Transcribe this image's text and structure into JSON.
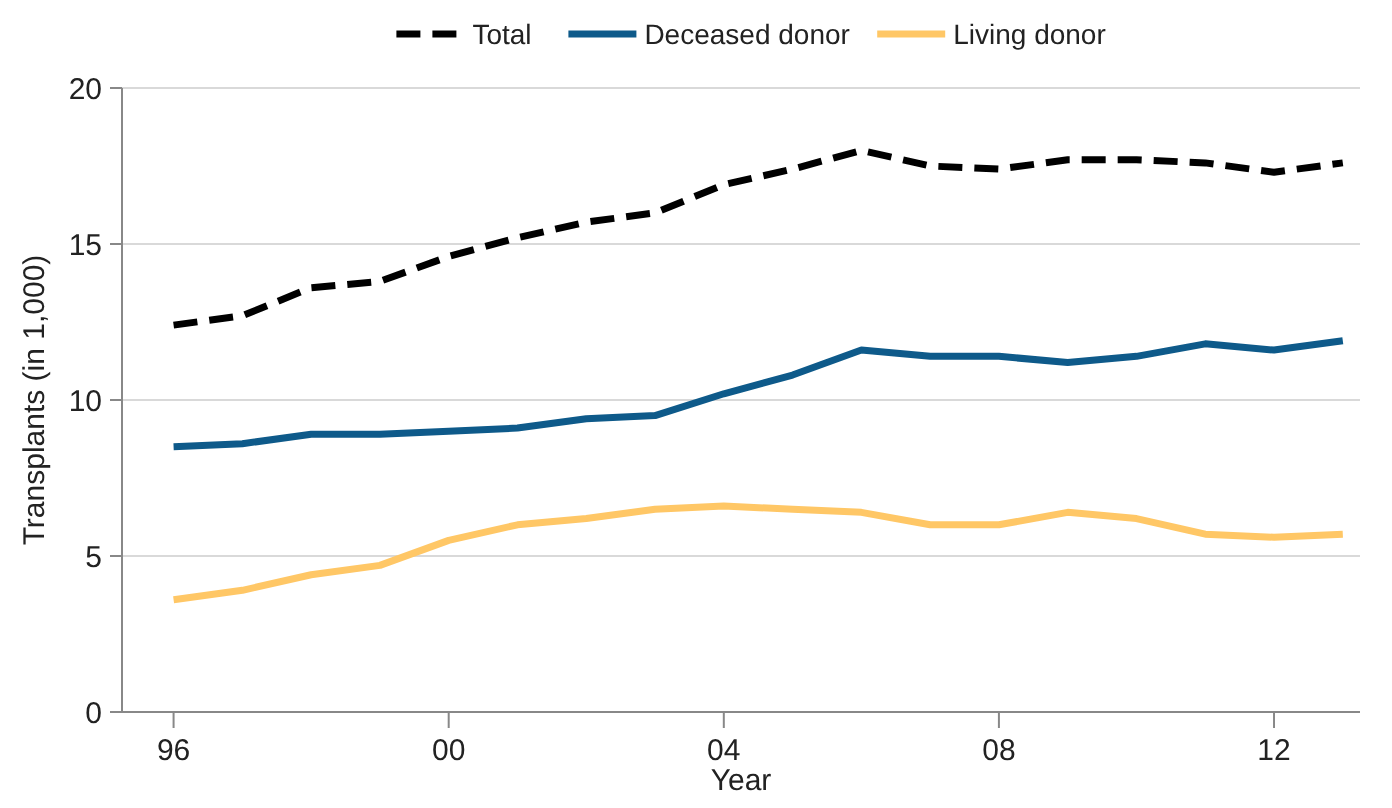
{
  "chart_data": {
    "type": "line",
    "xlabel": "Year",
    "ylabel": "Transplants (in 1,000)",
    "x": [
      1996,
      1997,
      1998,
      1999,
      2000,
      2001,
      2002,
      2003,
      2004,
      2005,
      2006,
      2007,
      2008,
      2009,
      2010,
      2011,
      2012,
      2013
    ],
    "xlim": [
      1995.25,
      2013.25
    ],
    "xticks": [
      {
        "value": 1996,
        "label": "96"
      },
      {
        "value": 2000,
        "label": "00"
      },
      {
        "value": 2004,
        "label": "04"
      },
      {
        "value": 2008,
        "label": "08"
      },
      {
        "value": 2012,
        "label": "12"
      }
    ],
    "ylim": [
      0,
      20
    ],
    "yticks": [
      0,
      5,
      10,
      15,
      20
    ],
    "grid": "y",
    "legend": "top",
    "marker": "none",
    "series": [
      {
        "name": "Total",
        "color": "#000000",
        "line_style": "dashed",
        "values": [
          12.4,
          12.7,
          13.6,
          13.8,
          14.6,
          15.2,
          15.7,
          16.0,
          16.9,
          17.4,
          18.0,
          17.5,
          17.4,
          17.7,
          17.7,
          17.6,
          17.3,
          17.6
        ]
      },
      {
        "name": "Deceased donor",
        "color": "#0e5a8a",
        "line_style": "solid",
        "values": [
          8.5,
          8.6,
          8.9,
          8.9,
          9.0,
          9.1,
          9.4,
          9.5,
          10.2,
          10.8,
          11.6,
          11.4,
          11.4,
          11.2,
          11.4,
          11.8,
          11.6,
          11.9
        ]
      },
      {
        "name": "Living donor",
        "color": "#ffc766",
        "line_style": "solid",
        "values": [
          3.6,
          3.9,
          4.4,
          4.7,
          5.5,
          6.0,
          6.2,
          6.5,
          6.6,
          6.5,
          6.4,
          6.0,
          6.0,
          6.4,
          6.2,
          5.7,
          5.6,
          5.7
        ]
      }
    ]
  }
}
